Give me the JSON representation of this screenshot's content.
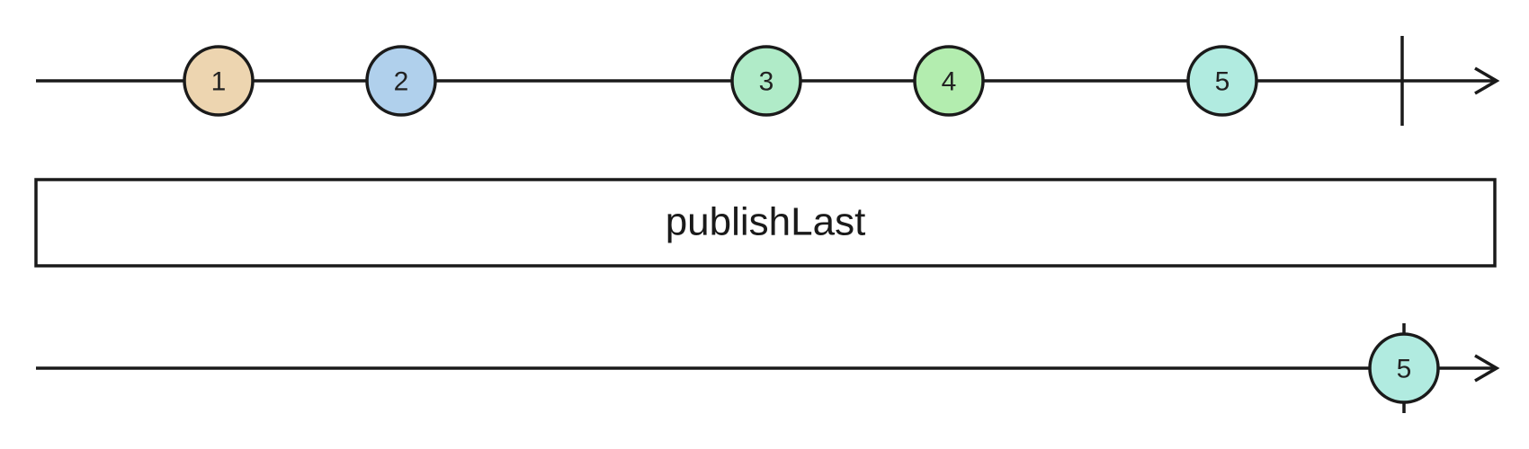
{
  "input_stream": {
    "marbles": [
      {
        "label": "1",
        "color": "#EDD5B0"
      },
      {
        "label": "2",
        "color": "#B0D0EC"
      },
      {
        "label": "3",
        "color": "#B0EBC8"
      },
      {
        "label": "4",
        "color": "#B3EDAF"
      },
      {
        "label": "5",
        "color": "#B1EBE0"
      }
    ],
    "completes": true
  },
  "operator": {
    "label": "publishLast"
  },
  "output_stream": {
    "marbles": [
      {
        "label": "5",
        "color": "#B1EBE0"
      }
    ],
    "completes_with_last": true
  },
  "colors": {
    "stroke": "#1a1a1a",
    "background": "#ffffff"
  }
}
